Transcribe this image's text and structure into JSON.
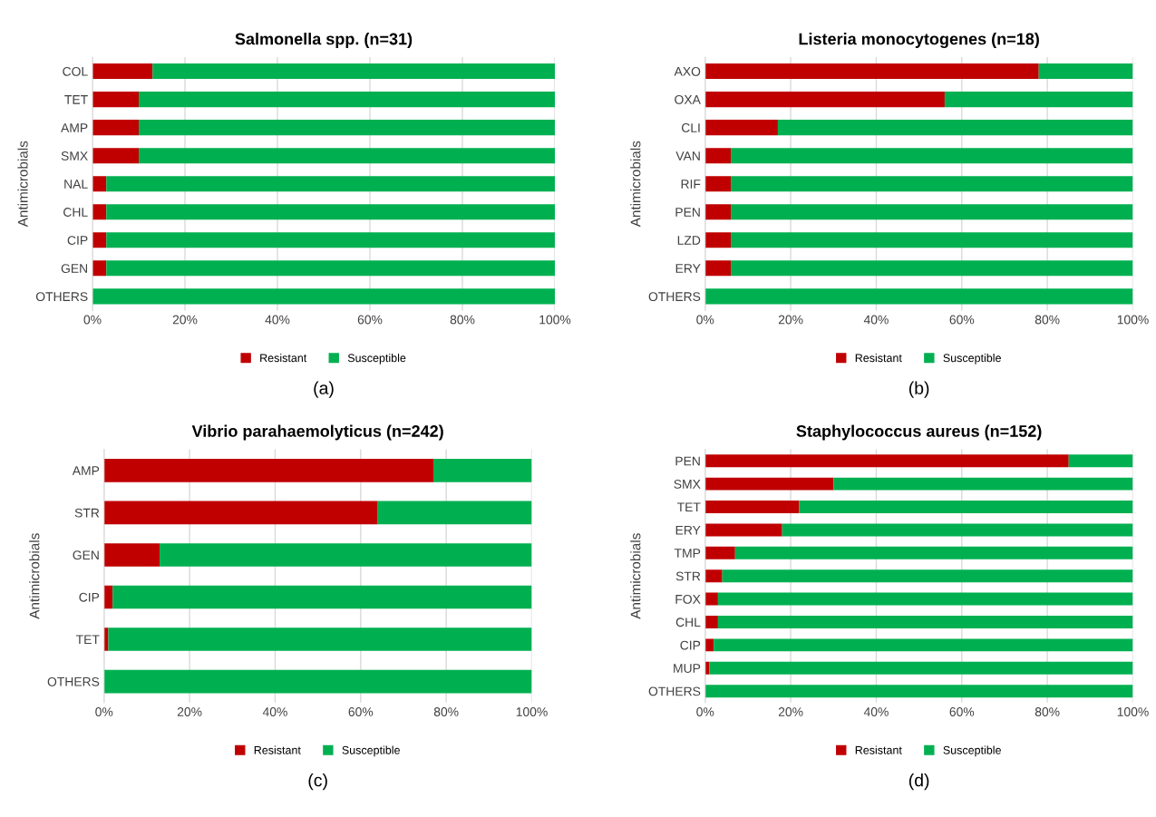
{
  "chart_data": [
    {
      "type": "bar",
      "orientation": "horizontal",
      "stacked": true,
      "title": "Salmonella spp. (n=31)",
      "ylabel": "Antimicrobials",
      "categories": [
        "COL",
        "TET",
        "AMP",
        "SMX",
        "NAL",
        "CHL",
        "CIP",
        "GEN",
        "OTHERS"
      ],
      "series": [
        {
          "name": "Resistant",
          "color": "#c00000",
          "values": [
            13,
            10,
            10,
            10,
            3,
            3,
            3,
            3,
            0
          ]
        },
        {
          "name": "Susceptible",
          "color": "#00b050",
          "values": [
            87,
            90,
            90,
            90,
            97,
            97,
            97,
            97,
            100
          ]
        }
      ],
      "xlim": [
        0,
        100
      ],
      "xticks": [
        {
          "value": 0,
          "label": "0%"
        },
        {
          "value": 20,
          "label": "20%"
        },
        {
          "value": 40,
          "label": "40%"
        },
        {
          "value": 60,
          "label": "60%"
        },
        {
          "value": 80,
          "label": "80%"
        },
        {
          "value": 100,
          "label": "100%"
        }
      ],
      "grid": "x",
      "legend": "bottom",
      "annotations": [
        "(a)"
      ]
    },
    {
      "type": "bar",
      "orientation": "horizontal",
      "stacked": true,
      "title": "Listeria monocytogenes (n=18)",
      "ylabel": "Antimicrobials",
      "categories": [
        "AXO",
        "OXA",
        "CLI",
        "VAN",
        "RIF",
        "PEN",
        "LZD",
        "ERY",
        "OTHERS"
      ],
      "series": [
        {
          "name": "Resistant",
          "color": "#c00000",
          "values": [
            78,
            56,
            17,
            6,
            6,
            6,
            6,
            6,
            0
          ]
        },
        {
          "name": "Susceptible",
          "color": "#00b050",
          "values": [
            22,
            44,
            83,
            94,
            94,
            94,
            94,
            94,
            100
          ]
        }
      ],
      "xlim": [
        0,
        100
      ],
      "xticks": [
        {
          "value": 0,
          "label": "0%"
        },
        {
          "value": 20,
          "label": "20%"
        },
        {
          "value": 40,
          "label": "40%"
        },
        {
          "value": 60,
          "label": "60%"
        },
        {
          "value": 80,
          "label": "80%"
        },
        {
          "value": 100,
          "label": "100%"
        }
      ],
      "grid": "x",
      "legend": "bottom",
      "annotations": [
        "(b)"
      ]
    },
    {
      "type": "bar",
      "orientation": "horizontal",
      "stacked": true,
      "title": "Vibrio parahaemolyticus (n=242)",
      "ylabel": "Antimicrobials",
      "categories": [
        "AMP",
        "STR",
        "GEN",
        "CIP",
        "TET",
        "OTHERS"
      ],
      "series": [
        {
          "name": "Resistant",
          "color": "#c00000",
          "values": [
            77,
            64,
            13,
            2,
            1,
            0
          ]
        },
        {
          "name": "Susceptible",
          "color": "#00b050",
          "values": [
            23,
            36,
            87,
            98,
            99,
            100
          ]
        }
      ],
      "xlim": [
        0,
        100
      ],
      "xticks": [
        {
          "value": 0,
          "label": "0%"
        },
        {
          "value": 20,
          "label": "20%"
        },
        {
          "value": 40,
          "label": "40%"
        },
        {
          "value": 60,
          "label": "60%"
        },
        {
          "value": 80,
          "label": "80%"
        },
        {
          "value": 100,
          "label": "100%"
        }
      ],
      "grid": "x",
      "legend": "bottom",
      "annotations": [
        "(c)"
      ]
    },
    {
      "type": "bar",
      "orientation": "horizontal",
      "stacked": true,
      "title": "Staphylococcus aureus (n=152)",
      "ylabel": "Antimicrobials",
      "categories": [
        "PEN",
        "SMX",
        "TET",
        "ERY",
        "TMP",
        "STR",
        "FOX",
        "CHL",
        "CIP",
        "MUP",
        "OTHERS"
      ],
      "series": [
        {
          "name": "Resistant",
          "color": "#c00000",
          "values": [
            85,
            30,
            22,
            18,
            7,
            4,
            3,
            3,
            2,
            1,
            0
          ]
        },
        {
          "name": "Susceptible",
          "color": "#00b050",
          "values": [
            15,
            70,
            78,
            82,
            93,
            96,
            97,
            97,
            98,
            99,
            100
          ]
        }
      ],
      "xlim": [
        0,
        100
      ],
      "xticks": [
        {
          "value": 0,
          "label": "0%"
        },
        {
          "value": 20,
          "label": "20%"
        },
        {
          "value": 40,
          "label": "40%"
        },
        {
          "value": 60,
          "label": "60%"
        },
        {
          "value": 80,
          "label": "80%"
        },
        {
          "value": 100,
          "label": "100%"
        }
      ],
      "grid": "x",
      "legend": "bottom",
      "annotations": [
        "(d)"
      ]
    }
  ]
}
